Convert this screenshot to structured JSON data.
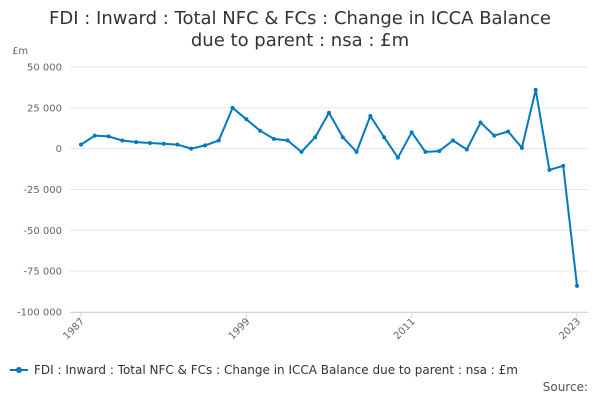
{
  "chart_data": {
    "type": "line",
    "title": "FDI : Inward : Total NFC & FCs : Change in ICCA Balance due to parent : nsa : £m",
    "title_lines": [
      "FDI : Inward : Total NFC & FCs : Change in ICCA Balance",
      "due to parent : nsa : £m"
    ],
    "ylabel": "£m",
    "ylim": [
      -100000,
      50000
    ],
    "yticks": [
      50000,
      25000,
      0,
      -25000,
      -50000,
      -75000,
      -100000
    ],
    "ytick_labels": [
      "50 000",
      "25 000",
      "0",
      "-25 000",
      "-50 000",
      "-75 000",
      "-100 000"
    ],
    "xlim": [
      1987,
      2023
    ],
    "xticks": [
      1987,
      1999,
      2011,
      2023
    ],
    "xtick_labels": [
      "1987",
      "1999",
      "2011",
      "2023"
    ],
    "grid": true,
    "legend_position": "bottom",
    "color": "#0079be",
    "series": [
      {
        "name": "FDI : Inward : Total NFC & FCs : Change in ICCA Balance due to parent : nsa : £m",
        "x": [
          1987,
          1988,
          1989,
          1990,
          1991,
          1992,
          1993,
          1994,
          1995,
          1996,
          1997,
          1998,
          1999,
          2000,
          2001,
          2002,
          2003,
          2004,
          2005,
          2006,
          2007,
          2008,
          2009,
          2010,
          2011,
          2012,
          2013,
          2014,
          2015,
          2016,
          2017,
          2018,
          2019,
          2020,
          2021,
          2022,
          2023
        ],
        "values": [
          2500,
          8000,
          7500,
          5000,
          4000,
          3500,
          3000,
          2500,
          0,
          2000,
          5000,
          25000,
          18000,
          11000,
          6000,
          5000,
          -2000,
          7000,
          22000,
          7000,
          -2000,
          20000,
          7000,
          -5500,
          10000,
          -2000,
          -1500,
          5000,
          -500,
          16000,
          8000,
          10500,
          500,
          36000,
          -13000,
          -10500,
          -84000
        ]
      }
    ]
  },
  "legend": {
    "label": "FDI : Inward : Total NFC & FCs : Change in ICCA Balance due to parent : nsa : £m"
  },
  "footer": {
    "source_label": "Source:"
  }
}
